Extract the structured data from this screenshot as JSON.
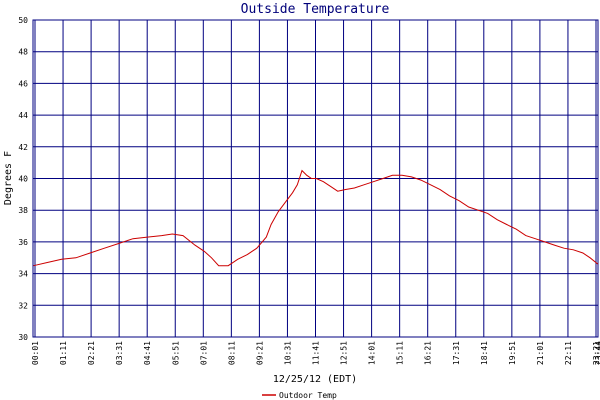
{
  "chart_data": {
    "type": "line",
    "title": "Outside Temperature",
    "xlabel": "12/25/12 (EDT)",
    "ylabel": "Degrees F",
    "ylim": [
      30,
      50
    ],
    "y_ticks": [
      "30",
      "32",
      "34",
      "36",
      "38",
      "40",
      "42",
      "44",
      "46",
      "48",
      "50"
    ],
    "x_ticks": [
      "00:01",
      "01:11",
      "02:21",
      "03:31",
      "04:41",
      "05:51",
      "07:01",
      "08:11",
      "09:21",
      "10:31",
      "11:41",
      "12:51",
      "14:01",
      "15:11",
      "16:21",
      "17:31",
      "18:41",
      "19:51",
      "21:01",
      "22:11",
      "23:21",
      "23:44"
    ],
    "grid": true,
    "legend_position": "bottom-left",
    "colors": {
      "series": "#cc0000",
      "grid": "#000080",
      "title": "#00007a"
    },
    "series": [
      {
        "name": "Outdoor Temp",
        "x_unit": "hours",
        "x": [
          0.02,
          0.6,
          1.2,
          1.8,
          2.4,
          3.0,
          3.6,
          4.2,
          4.8,
          5.4,
          5.85,
          6.3,
          6.8,
          7.2,
          7.5,
          7.8,
          8.2,
          8.6,
          9.0,
          9.4,
          9.8,
          10.0,
          10.3,
          10.6,
          10.9,
          11.1,
          11.3,
          11.5,
          11.7,
          11.9,
          12.2,
          12.5,
          12.8,
          13.1,
          13.5,
          13.9,
          14.3,
          14.7,
          15.1,
          15.5,
          15.9,
          16.3,
          16.7,
          17.1,
          17.5,
          17.9,
          18.3,
          18.7,
          19.1,
          19.5,
          19.9,
          20.3,
          20.7,
          21.1,
          21.5,
          21.9,
          22.3,
          22.7,
          23.1,
          23.4,
          23.73
        ],
        "values": [
          34.5,
          34.7,
          34.9,
          35.0,
          35.3,
          35.6,
          35.9,
          36.2,
          36.3,
          36.4,
          36.5,
          36.4,
          35.8,
          35.4,
          35.0,
          34.5,
          34.5,
          34.9,
          35.2,
          35.6,
          36.3,
          37.1,
          37.9,
          38.5,
          39.1,
          39.6,
          40.5,
          40.2,
          40.0,
          40.0,
          39.8,
          39.5,
          39.2,
          39.3,
          39.4,
          39.6,
          39.8,
          40.0,
          40.2,
          40.2,
          40.1,
          39.9,
          39.6,
          39.3,
          38.9,
          38.6,
          38.2,
          38.0,
          37.8,
          37.4,
          37.1,
          36.8,
          36.4,
          36.2,
          36.0,
          35.8,
          35.6,
          35.5,
          35.3,
          35.0,
          34.6
        ]
      }
    ]
  }
}
